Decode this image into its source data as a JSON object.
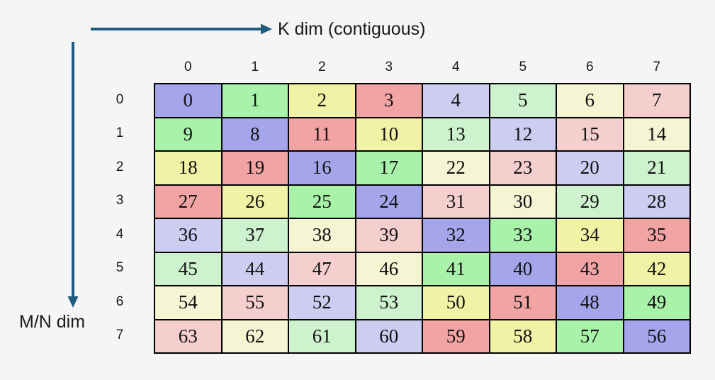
{
  "labels": {
    "k_dim": "K dim (contiguous)",
    "mn_dim": "M/N dim"
  },
  "colors": {
    "background": "#f5f5f5",
    "arrow": "#1f5d7e",
    "grid_border": "#000000",
    "text": "#1a1a1a",
    "palette": {
      "purple": "#a5a5ec",
      "green": "#a9f2a9",
      "yellow": "#f2f2a6",
      "red": "#f2a3a3",
      "purple-light": "#cdcdf2",
      "green-light": "#cdf2cd",
      "yellow-light": "#f5f5d4",
      "red-light": "#f5cece"
    }
  },
  "matrix": {
    "col_headers": [
      "0",
      "1",
      "2",
      "3",
      "4",
      "5",
      "6",
      "7"
    ],
    "row_headers": [
      "0",
      "1",
      "2",
      "3",
      "4",
      "5",
      "6",
      "7"
    ],
    "values": [
      [
        0,
        1,
        2,
        3,
        4,
        5,
        6,
        7
      ],
      [
        9,
        8,
        11,
        10,
        13,
        12,
        15,
        14
      ],
      [
        18,
        19,
        16,
        17,
        22,
        23,
        20,
        21
      ],
      [
        27,
        26,
        25,
        24,
        31,
        30,
        29,
        28
      ],
      [
        36,
        37,
        38,
        39,
        32,
        33,
        34,
        35
      ],
      [
        45,
        44,
        47,
        46,
        41,
        40,
        43,
        42
      ],
      [
        54,
        55,
        52,
        53,
        50,
        51,
        48,
        49
      ],
      [
        63,
        62,
        61,
        60,
        59,
        58,
        57,
        56
      ]
    ],
    "cell_colors": [
      [
        "purple",
        "green",
        "yellow",
        "red",
        "purple-light",
        "green-light",
        "yellow-light",
        "red-light"
      ],
      [
        "green",
        "purple",
        "red",
        "yellow",
        "green-light",
        "purple-light",
        "red-light",
        "yellow-light"
      ],
      [
        "yellow",
        "red",
        "purple",
        "green",
        "yellow-light",
        "red-light",
        "purple-light",
        "green-light"
      ],
      [
        "red",
        "yellow",
        "green",
        "purple",
        "red-light",
        "yellow-light",
        "green-light",
        "purple-light"
      ],
      [
        "purple-light",
        "green-light",
        "yellow-light",
        "red-light",
        "purple",
        "green",
        "yellow",
        "red"
      ],
      [
        "green-light",
        "purple-light",
        "red-light",
        "yellow-light",
        "green",
        "purple",
        "red",
        "yellow"
      ],
      [
        "yellow-light",
        "red-light",
        "purple-light",
        "green-light",
        "yellow",
        "red",
        "purple",
        "green"
      ],
      [
        "red-light",
        "yellow-light",
        "green-light",
        "purple-light",
        "red",
        "yellow",
        "green",
        "purple"
      ]
    ]
  }
}
